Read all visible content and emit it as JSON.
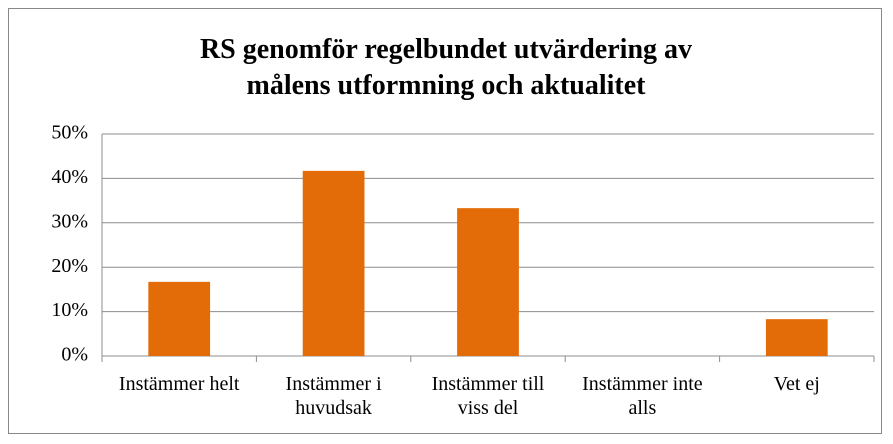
{
  "chart_data": {
    "type": "bar",
    "title": "RS genomför regelbundet utvärdering av målens utformning och aktualitet",
    "categories": [
      "Instämmer helt",
      "Instämmer i huvudsak",
      "Instämmer till viss del",
      "Instämmer inte alls",
      "Vet ej"
    ],
    "values": [
      16.7,
      41.7,
      33.3,
      0,
      8.3
    ],
    "color": "#e36c09",
    "ylim": [
      0,
      50
    ],
    "yticks": [
      {
        "value": 0,
        "label": "0%"
      },
      {
        "value": 10,
        "label": "10%"
      },
      {
        "value": 20,
        "label": "20%"
      },
      {
        "value": 30,
        "label": "30%"
      },
      {
        "value": 40,
        "label": "40%"
      },
      {
        "value": 50,
        "label": "50%"
      }
    ],
    "grid": true
  }
}
